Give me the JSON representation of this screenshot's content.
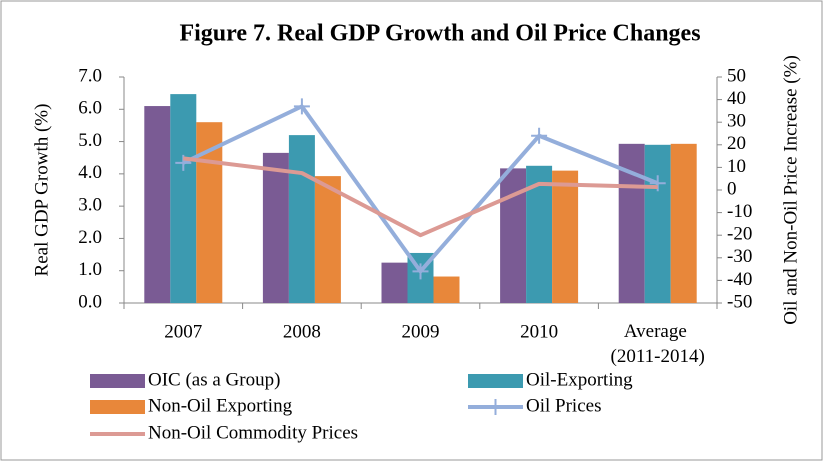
{
  "chart_data": {
    "type": "bar_line",
    "title": "Figure 7. Real GDP Growth and Oil Price Changes",
    "y_label": "Real GDP Growth (%)",
    "y2_label": "Oil and Non-Oil Price Increase (%)",
    "categories": [
      "2007",
      "2008",
      "2009",
      "2010",
      "Average (2011-2014)"
    ],
    "series": [
      {
        "name": "OIC (as a Group)",
        "type": "bar",
        "color": "#7a5b94",
        "values": [
          6.1,
          4.65,
          1.25,
          4.17,
          4.93
        ]
      },
      {
        "name": "Oil-Exporting",
        "type": "bar",
        "color": "#3c9ab0",
        "values": [
          6.47,
          5.2,
          1.55,
          4.25,
          4.9
        ]
      },
      {
        "name": "Non-Oil Exporting",
        "type": "bar",
        "color": "#e8873a",
        "values": [
          5.6,
          3.93,
          0.82,
          4.1,
          4.93
        ]
      },
      {
        "name": "Oil Prices",
        "type": "line",
        "axis": "y2",
        "marker": "plus",
        "color": "#94aedb",
        "values": [
          12,
          37,
          -36,
          24,
          3
        ]
      },
      {
        "name": "Non-Oil Commodity Prices",
        "type": "line",
        "axis": "y2",
        "color": "#dc9a94",
        "values": [
          14,
          7.5,
          -20,
          2.7,
          1.3
        ]
      }
    ],
    "ylim": [
      0,
      7
    ],
    "yticks": [
      {
        "value": 0,
        "label": "0.0"
      },
      {
        "value": 1,
        "label": "1.0"
      },
      {
        "value": 2,
        "label": "2.0"
      },
      {
        "value": 3,
        "label": "3.0"
      },
      {
        "value": 4,
        "label": "4.0"
      },
      {
        "value": 5,
        "label": "5.0"
      },
      {
        "value": 6,
        "label": "6.0"
      },
      {
        "value": 7,
        "label": "7.0"
      }
    ],
    "y2lim": [
      -50,
      50
    ],
    "y2ticks": [
      -50,
      -40,
      -30,
      -20,
      -10,
      0,
      10,
      20,
      30,
      40,
      50
    ],
    "grid": false
  }
}
